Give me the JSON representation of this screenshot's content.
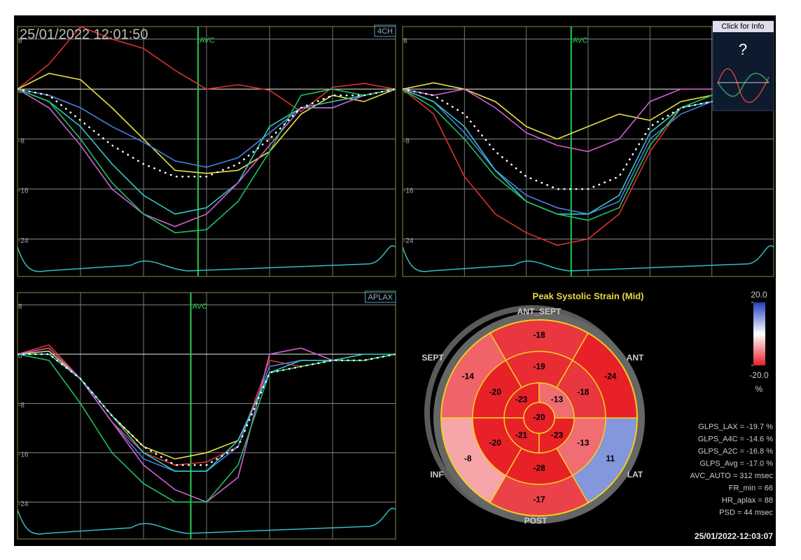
{
  "header": {
    "timestamp": "25/01/2022 12:01:50"
  },
  "info_button": {
    "label": "Click for Info",
    "icon": "?"
  },
  "chart_data": [
    {
      "type": "line",
      "tab": "4CH",
      "marker_label": "AVC",
      "avc": 5.73,
      "x": [
        0,
        1,
        2,
        3,
        4,
        5,
        6,
        7,
        8,
        9,
        10,
        11,
        12
      ],
      "xlim": [
        0,
        12
      ],
      "ylim": [
        -30,
        10
      ],
      "yticks": [
        8,
        0,
        -8,
        -16,
        -24
      ],
      "series": [
        {
          "color": "#e03030",
          "values": [
            0,
            4,
            10,
            8,
            6.5,
            3,
            0,
            0.7,
            -0.2,
            -3.6,
            0.3,
            0.9,
            0
          ]
        },
        {
          "color": "#e8e040",
          "values": [
            0,
            2.5,
            1.5,
            -3,
            -8,
            -13,
            -13.5,
            -13,
            -10,
            -4,
            -1,
            -2,
            0
          ]
        },
        {
          "color": "#4a7ee0",
          "values": [
            0,
            -1,
            -3,
            -6,
            -8.5,
            -11.5,
            -12.5,
            -11,
            -7,
            -3,
            -3,
            -1,
            0
          ]
        },
        {
          "color": "#30c8c8",
          "values": [
            0,
            -2,
            -6,
            -12,
            -17,
            -20,
            -19,
            -15,
            -6,
            -3,
            -2,
            -1,
            0
          ]
        },
        {
          "color": "#d060d0",
          "values": [
            0,
            -3,
            -9,
            -16,
            -20,
            -22,
            -20,
            -15,
            -9,
            -3,
            -3,
            -1,
            0
          ]
        },
        {
          "color": "#20c060",
          "values": [
            0,
            -2,
            -8,
            -15,
            -20,
            -23,
            -22.5,
            -18,
            -10,
            -1,
            0,
            -1,
            0
          ]
        },
        {
          "color": "#ffffff",
          "style": "dotted",
          "values": [
            0,
            -1,
            -5,
            -9,
            -12,
            -14,
            -14,
            -12,
            -8,
            -3,
            -1,
            -1,
            0
          ]
        }
      ]
    },
    {
      "type": "line",
      "tab": "",
      "marker_label": "AVC",
      "avc": 5.45,
      "x": [
        0,
        1,
        2,
        3,
        4,
        5,
        6,
        7,
        8,
        9,
        10,
        11,
        12
      ],
      "xlim": [
        0,
        12
      ],
      "ylim": [
        -30,
        10
      ],
      "yticks": [
        8,
        0,
        -8,
        -16,
        -24
      ],
      "series": [
        {
          "color": "#e03030",
          "values": [
            0,
            -4,
            -14,
            -20,
            -23,
            -25,
            -24,
            -20,
            -10,
            -3,
            -2,
            -1,
            0
          ]
        },
        {
          "color": "#e8e040",
          "values": [
            0,
            1,
            0,
            -2,
            -6,
            -8,
            -6,
            -4,
            -5,
            -2,
            -1,
            -1,
            0
          ]
        },
        {
          "color": "#d060d0",
          "values": [
            0,
            -1,
            0,
            -3,
            -7,
            -9,
            -10,
            -8,
            -2,
            0,
            0,
            0,
            0
          ]
        },
        {
          "color": "#4a7ee0",
          "values": [
            0,
            -2,
            -7,
            -13,
            -17,
            -19,
            -20,
            -18,
            -8,
            -4,
            -2,
            -1,
            0
          ]
        },
        {
          "color": "#30c8c8",
          "values": [
            0,
            -2,
            -6,
            -13,
            -18,
            -20,
            -20,
            -17,
            -7,
            -3,
            -2,
            -1,
            0
          ]
        },
        {
          "color": "#20c060",
          "values": [
            0,
            -3,
            -8,
            -14,
            -18,
            -20,
            -21,
            -19,
            -9,
            -3,
            -1,
            0,
            0
          ]
        },
        {
          "color": "#ffffff",
          "style": "dotted",
          "values": [
            0,
            -1,
            -4,
            -10,
            -14,
            -16,
            -16,
            -14,
            -6,
            -3,
            -2,
            -1,
            0
          ]
        }
      ]
    },
    {
      "type": "line",
      "tab": "APLAX",
      "marker_label": "AVC",
      "avc": 5.5,
      "x": [
        0,
        1,
        2,
        3,
        4,
        5,
        6,
        7,
        8,
        9,
        10,
        11,
        12
      ],
      "xlim": [
        0,
        12
      ],
      "ylim": [
        -30,
        10
      ],
      "yticks": [
        8,
        0,
        -8,
        -16,
        -24
      ],
      "series": [
        {
          "color": "#e03030",
          "values": [
            0,
            1.5,
            -4,
            -11,
            -16,
            -18,
            -17.5,
            -15,
            -1,
            -2,
            -1,
            -1,
            0
          ]
        },
        {
          "color": "#e8e040",
          "values": [
            0,
            0.5,
            -4,
            -10,
            -15,
            -17,
            -16,
            -14,
            -3,
            -2,
            -1,
            -1,
            0
          ]
        },
        {
          "color": "#4a7ee0",
          "values": [
            0,
            0,
            -4,
            -11,
            -17,
            -19,
            -19,
            -15,
            -2,
            -1,
            -1,
            -1,
            0
          ]
        },
        {
          "color": "#d060d0",
          "values": [
            0,
            1,
            -4,
            -11,
            -18,
            -22,
            -24,
            -20,
            0,
            1,
            -1,
            -1,
            0
          ]
        },
        {
          "color": "#20c060",
          "values": [
            0,
            -1,
            -8,
            -16,
            -21,
            -24,
            -24,
            -18,
            -3,
            -2,
            -1,
            -1,
            0
          ]
        },
        {
          "color": "#30c8c8",
          "values": [
            0,
            0,
            -4,
            -10,
            -16,
            -19,
            -19,
            -14,
            -3,
            -1,
            -1,
            0,
            0
          ]
        },
        {
          "color": "#ffffff",
          "style": "dotted",
          "values": [
            0,
            0,
            -4,
            -10,
            -15,
            -18,
            -18,
            -15,
            -3,
            -2,
            -1,
            -1,
            0
          ]
        }
      ]
    }
  ],
  "bullseye": {
    "title": "Peak Systolic Strain (Mid)",
    "regions": [
      "ANT_SEPT",
      "SEPT",
      "ANT",
      "INF",
      "LAT",
      "POST"
    ],
    "basal": [
      -18,
      -14,
      -8,
      -17,
      11,
      -24
    ],
    "mid": [
      -19,
      -20,
      -20,
      -28,
      -13,
      -18
    ],
    "apical": [
      -23,
      -21,
      -23,
      -13
    ],
    "apex": -20,
    "scale": [
      {
        "value": 20,
        "label": "20.0"
      },
      {
        "value": -20,
        "label": "-20.0"
      }
    ],
    "unit": "%"
  },
  "measurements": [
    "GLPS_LAX = -19.7 %",
    "GLPS_A4C = -14.6 %",
    "GLPS_A2C = -16.8 %",
    "GLPS_Avg = -17.0 %",
    "AVC_AUTO = 312 msec",
    "FR_min = 66",
    "HR_aplax = 88",
    "PSD = 44 msec"
  ],
  "footer": {
    "timestamp": "25/01/2022-12:03:07"
  }
}
